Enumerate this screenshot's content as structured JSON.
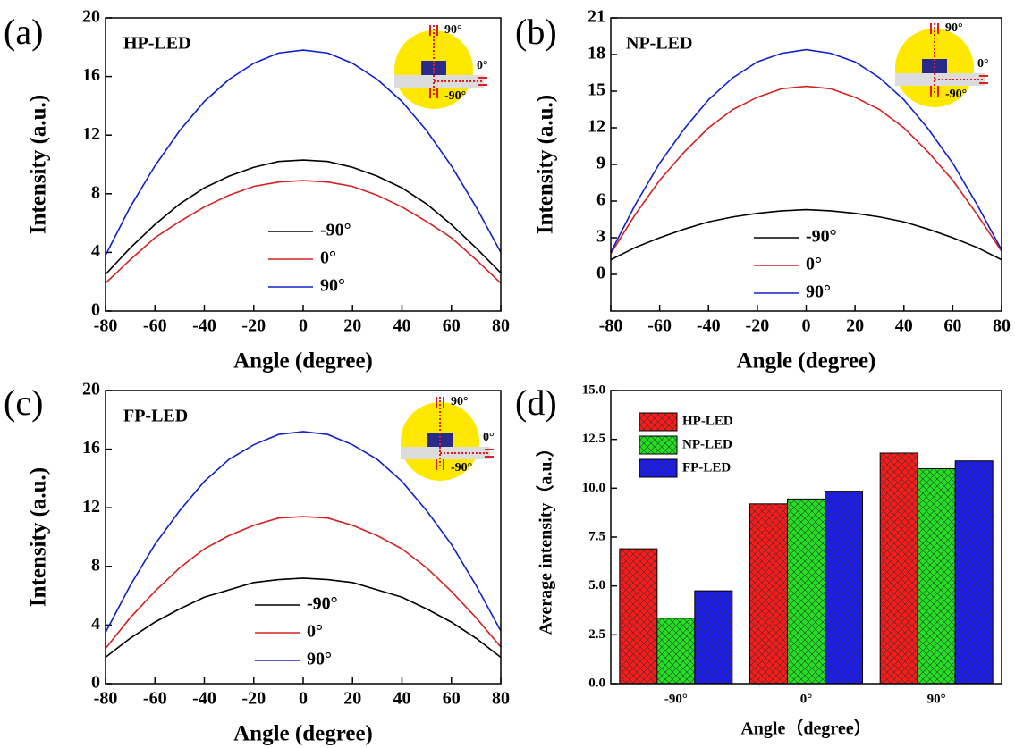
{
  "chart_data": [
    {
      "type": "line",
      "panel_label": "(a)",
      "title": "HP-LED",
      "xlabel": "Angle (degree)",
      "ylabel": "Intensity (a.u.)",
      "xlim": [
        -80,
        80
      ],
      "xticks": [
        -80,
        -60,
        -40,
        -20,
        0,
        20,
        40,
        60,
        80
      ],
      "ylim": [
        0,
        20
      ],
      "yticks": [
        0,
        4,
        8,
        12,
        16,
        20
      ],
      "inset_labels": [
        "90°",
        "0°",
        "-90°"
      ],
      "x": [
        -80,
        -70,
        -60,
        -50,
        -40,
        -30,
        -20,
        -10,
        0,
        10,
        20,
        30,
        40,
        50,
        60,
        70,
        80
      ],
      "series": [
        {
          "name": "-90°",
          "color": "#000000",
          "values": [
            2.5,
            4.3,
            5.9,
            7.3,
            8.4,
            9.2,
            9.8,
            10.2,
            10.3,
            10.2,
            9.8,
            9.2,
            8.4,
            7.3,
            5.9,
            4.3,
            2.6
          ]
        },
        {
          "name": "0°",
          "color": "#d62020",
          "values": [
            1.9,
            3.5,
            5.0,
            6.1,
            7.1,
            7.9,
            8.5,
            8.8,
            8.9,
            8.8,
            8.5,
            7.9,
            7.1,
            6.1,
            5.0,
            3.5,
            1.9
          ]
        },
        {
          "name": "90°",
          "color": "#1020c8",
          "values": [
            3.8,
            7.1,
            9.9,
            12.3,
            14.3,
            15.8,
            16.9,
            17.6,
            17.8,
            17.6,
            16.9,
            15.8,
            14.3,
            12.3,
            9.9,
            7.1,
            4.0
          ]
        }
      ]
    },
    {
      "type": "line",
      "panel_label": "(b)",
      "title": "NP-LED",
      "xlabel": "Angle (degree)",
      "ylabel": "Intensity (a.u.)",
      "xlim": [
        -80,
        80
      ],
      "xticks": [
        -80,
        -60,
        -40,
        -20,
        0,
        20,
        40,
        60,
        80
      ],
      "ylim": [
        -3,
        21
      ],
      "yticks": [
        0,
        3,
        6,
        9,
        12,
        15,
        18,
        21
      ],
      "inset_labels": [
        "90°",
        "0°",
        "-90°"
      ],
      "x": [
        -80,
        -70,
        -60,
        -50,
        -40,
        -30,
        -20,
        -10,
        0,
        10,
        20,
        30,
        40,
        50,
        60,
        70,
        80
      ],
      "series": [
        {
          "name": "-90°",
          "color": "#000000",
          "values": [
            1.2,
            2.2,
            3.0,
            3.7,
            4.3,
            4.7,
            5.0,
            5.2,
            5.3,
            5.2,
            5.0,
            4.7,
            4.3,
            3.7,
            3.0,
            2.2,
            1.2
          ]
        },
        {
          "name": "0°",
          "color": "#d62020",
          "values": [
            1.7,
            4.9,
            7.7,
            10.0,
            12.0,
            13.5,
            14.5,
            15.2,
            15.4,
            15.2,
            14.5,
            13.5,
            12.0,
            10.0,
            7.7,
            4.9,
            1.9
          ]
        },
        {
          "name": "90°",
          "color": "#1020c8",
          "values": [
            1.8,
            5.7,
            9.1,
            11.9,
            14.3,
            16.1,
            17.4,
            18.1,
            18.4,
            18.1,
            17.4,
            16.1,
            14.3,
            11.9,
            9.1,
            5.7,
            2.0
          ]
        }
      ]
    },
    {
      "type": "line",
      "panel_label": "(c)",
      "title": "FP-LED",
      "xlabel": "Angle (degree)",
      "ylabel": "Intensity (a.u.)",
      "xlim": [
        -80,
        80
      ],
      "xticks": [
        -80,
        -60,
        -40,
        -20,
        0,
        20,
        40,
        60,
        80
      ],
      "ylim": [
        0,
        20
      ],
      "yticks": [
        0,
        4,
        8,
        12,
        16,
        20
      ],
      "inset_labels": [
        "90°",
        "0°",
        "-90°"
      ],
      "x": [
        -80,
        -70,
        -60,
        -50,
        -40,
        -30,
        -20,
        -10,
        0,
        10,
        20,
        30,
        40,
        50,
        60,
        70,
        80
      ],
      "series": [
        {
          "name": "-90°",
          "color": "#000000",
          "values": [
            1.8,
            3.1,
            4.2,
            5.1,
            5.9,
            6.4,
            6.9,
            7.1,
            7.2,
            7.1,
            6.9,
            6.4,
            5.9,
            5.1,
            4.2,
            3.1,
            1.8
          ]
        },
        {
          "name": "0°",
          "color": "#d62020",
          "values": [
            2.4,
            4.5,
            6.3,
            7.9,
            9.2,
            10.1,
            10.8,
            11.3,
            11.4,
            11.3,
            10.8,
            10.1,
            9.2,
            7.9,
            6.3,
            4.5,
            2.5
          ]
        },
        {
          "name": "90°",
          "color": "#1020c8",
          "values": [
            3.5,
            6.7,
            9.5,
            11.8,
            13.8,
            15.3,
            16.3,
            17.0,
            17.2,
            17.0,
            16.3,
            15.3,
            13.8,
            11.8,
            9.5,
            6.7,
            3.6
          ]
        }
      ]
    },
    {
      "type": "bar",
      "panel_label": "(d)",
      "xlabel": "Angle（degree）",
      "ylabel": "Average intensity（a.u.）",
      "categories": [
        "-90°",
        "0°",
        "90°"
      ],
      "ylim": [
        0,
        15
      ],
      "yticks": [
        {
          "value": 0,
          "label": "0.0"
        },
        2.5,
        {
          "value": 5,
          "label": "5.0"
        },
        7.5,
        {
          "value": 10,
          "label": "10.0"
        },
        12.5,
        {
          "value": 15,
          "label": "15.0"
        }
      ],
      "series": [
        {
          "name": "HP-LED",
          "color": "#ff1a1a",
          "values": [
            6.9,
            9.2,
            11.8
          ]
        },
        {
          "name": "NP-LED",
          "color": "#22e022",
          "values": [
            3.35,
            9.45,
            11.0
          ]
        },
        {
          "name": "FP-LED",
          "color": "#1a1aff",
          "values": [
            4.75,
            9.85,
            11.4
          ]
        }
      ]
    }
  ]
}
